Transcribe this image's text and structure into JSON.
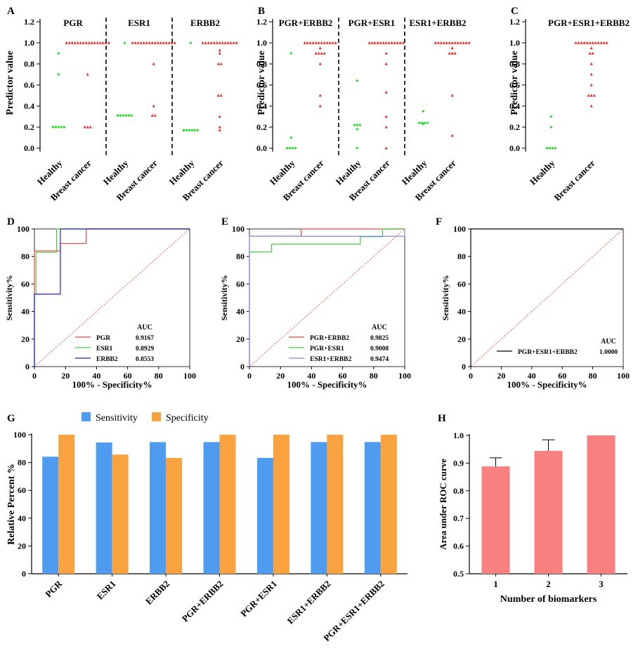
{
  "colors": {
    "healthy": "#22dd22",
    "cancel": "#ee2222",
    "diag": "#ee4444",
    "roc_red": "#ee4444",
    "roc_green": "#44cc44",
    "roc_blue": "#2222bb",
    "roc_purple": "#8888ee",
    "sens": "#4f9bf0",
    "spec": "#f8a240",
    "auc_bar": "#f98080"
  },
  "panels": {
    "A": {
      "letter": "A",
      "ylabel": "Predictor value",
      "yticks": [
        "0.0",
        "0.2",
        "0.4",
        "0.6",
        "0.8",
        "1.0",
        "1.2"
      ],
      "groups": [
        {
          "title": "PGR",
          "cats": [
            "Healthy",
            "Breast cancer"
          ],
          "healthy": [
            0.9,
            0.7,
            0.2,
            0.2,
            0.2,
            0.2,
            0.2
          ],
          "cancer": [
            1,
            1,
            1,
            1,
            1,
            1,
            1,
            1,
            1,
            1,
            1,
            1,
            1,
            1,
            1,
            1,
            0.7,
            0.2,
            0.2,
            0.2
          ]
        },
        {
          "title": "ESR1",
          "cats": [
            "Healthy",
            "Breast cancer"
          ],
          "healthy": [
            1.0,
            0.31,
            0.31,
            0.31,
            0.31,
            0.31,
            0.31
          ],
          "cancer": [
            1,
            1,
            1,
            1,
            1,
            1,
            1,
            1,
            1,
            1,
            1,
            1,
            1,
            1,
            1,
            1,
            0.8,
            0.4,
            0.31,
            0.31
          ]
        },
        {
          "title": "ERBB2",
          "cats": [
            "Healthy",
            "Breast cancer"
          ],
          "healthy": [
            1.0,
            0.17,
            0.17,
            0.17,
            0.17,
            0.17,
            0.17
          ],
          "cancer": [
            1,
            1,
            1,
            1,
            1,
            1,
            1,
            1,
            1,
            1,
            1,
            1,
            1,
            0.93,
            0.9,
            0.8,
            0.8,
            0.5,
            0.5,
            0.3,
            0.2,
            0.17
          ]
        }
      ]
    },
    "B": {
      "letter": "B",
      "ylabel": "Predictor value",
      "yticks": [
        "0.0",
        "0.2",
        "0.4",
        "0.6",
        "0.8",
        "1.0",
        "1.2"
      ],
      "groups": [
        {
          "title": "PGR+ERBB2",
          "cats": [
            "Healthy",
            "Breast cancer"
          ],
          "healthy": [
            0.9,
            0.1,
            0,
            0,
            0,
            0
          ],
          "cancer": [
            1,
            1,
            1,
            1,
            1,
            1,
            1,
            1,
            1,
            1,
            1,
            1,
            0.95,
            0.9,
            0.9,
            0.9,
            0.9,
            0.8,
            0.5,
            0.4
          ]
        },
        {
          "title": "PGR+ESR1",
          "cats": [
            "Healthy",
            "Breast cancer"
          ],
          "healthy": [
            0.64,
            0.22,
            0.22,
            0.22,
            0.18,
            0.0
          ],
          "cancer": [
            1,
            1,
            1,
            1,
            1,
            1,
            1,
            1,
            1,
            1,
            1,
            1,
            1,
            0.9,
            0.8,
            0.53,
            0.3,
            0.2,
            0.0
          ]
        },
        {
          "title": "ESR1+ERBB2",
          "cats": [
            "Healthy",
            "Breast cancer"
          ],
          "healthy": [
            0.35,
            0.24,
            0.24,
            0.24,
            0.24,
            0.23
          ],
          "cancer": [
            1,
            1,
            1,
            1,
            1,
            1,
            1,
            1,
            1,
            1,
            1,
            1,
            1,
            0.95,
            0.9,
            0.9,
            0.9,
            0.5,
            0.12
          ]
        }
      ]
    },
    "C": {
      "letter": "C",
      "ylabel": "Predictor value",
      "yticks": [
        "0.0",
        "0.2",
        "0.4",
        "0.6",
        "0.8",
        "1.0",
        "1.2"
      ],
      "groups": [
        {
          "title": "PGR+ESR1+ERBB2",
          "cats": [
            "Healthy",
            "Breast cancer"
          ],
          "healthy": [
            0.3,
            0.2,
            0,
            0,
            0,
            0
          ],
          "cancer": [
            1,
            1,
            1,
            1,
            1,
            1,
            1,
            1,
            1,
            1,
            1,
            1,
            0.95,
            0.9,
            0.9,
            0.8,
            0.7,
            0.6,
            0.5,
            0.5,
            0.5,
            0.4
          ]
        }
      ]
    },
    "D": {
      "letter": "D",
      "xlabel": "100% - Specificity%",
      "ylabel": "Sensitivity%",
      "ticks": [
        "0",
        "20",
        "40",
        "60",
        "80",
        "100"
      ],
      "auc_header": "AUC",
      "curves": [
        {
          "name": "PGR",
          "auc": "0.9167",
          "color": "roc_red",
          "pts": [
            [
              0,
              0
            ],
            [
              0,
              84
            ],
            [
              16.7,
              84
            ],
            [
              16.7,
              89.5
            ],
            [
              33.3,
              89.5
            ],
            [
              33.3,
              100
            ],
            [
              100,
              100
            ]
          ]
        },
        {
          "name": "ESR1",
          "auc": "0.8929",
          "color": "roc_green",
          "pts": [
            [
              0,
              0
            ],
            [
              0,
              52.6
            ],
            [
              1,
              52.6
            ],
            [
              1,
              83
            ],
            [
              14.3,
              83
            ],
            [
              14.3,
              100
            ],
            [
              100,
              100
            ]
          ]
        },
        {
          "name": "ERBB2",
          "auc": "0.8553",
          "color": "roc_blue",
          "pts": [
            [
              0,
              0
            ],
            [
              0,
              52.6
            ],
            [
              16.7,
              52.6
            ],
            [
              16.7,
              100
            ],
            [
              100,
              100
            ]
          ]
        }
      ]
    },
    "E": {
      "letter": "E",
      "xlabel": "100% - Specificity%",
      "ylabel": "Sensitivity%",
      "ticks": [
        "0",
        "20",
        "40",
        "60",
        "80",
        "100"
      ],
      "auc_header": "AUC",
      "curves": [
        {
          "name": "PGR+ERBB2",
          "auc": "0.9825",
          "color": "roc_red",
          "pts": [
            [
              0,
              0
            ],
            [
              0,
              94.7
            ],
            [
              33.3,
              94.7
            ],
            [
              33.3,
              100
            ],
            [
              100,
              100
            ]
          ]
        },
        {
          "name": "PGR+ESR1",
          "auc": "0.9008",
          "color": "roc_green",
          "pts": [
            [
              0,
              0
            ],
            [
              0,
              83.3
            ],
            [
              14.3,
              83.3
            ],
            [
              14.3,
              88.9
            ],
            [
              71.4,
              88.9
            ],
            [
              71.4,
              94.4
            ],
            [
              85.7,
              94.4
            ],
            [
              85.7,
              100
            ],
            [
              100,
              100
            ]
          ]
        },
        {
          "name": "ESR1+ERBB2",
          "auc": "0.9474",
          "color": "roc_purple",
          "pts": [
            [
              0,
              0
            ],
            [
              0,
              94.7
            ],
            [
              100,
              94.7
            ],
            [
              100,
              100
            ]
          ]
        }
      ]
    },
    "F": {
      "letter": "F",
      "xlabel": "100% - Specificity%",
      "ylabel": "Sensitivity%",
      "ticks": [
        "0",
        "20",
        "40",
        "60",
        "80",
        "100"
      ],
      "auc_header": "AUC",
      "curves": [
        {
          "name": "PGR+ESR1+ERBB2",
          "auc": "1.0000",
          "color": "black",
          "pts": [
            [
              0,
              0
            ],
            [
              0,
              100
            ],
            [
              100,
              100
            ]
          ]
        }
      ]
    },
    "G": {
      "letter": "G",
      "ylabel": "Relative Percent %",
      "legend": [
        "Sensitivity",
        "Specificity"
      ],
      "yticks": [
        "0",
        "20",
        "40",
        "60",
        "80",
        "100"
      ]
    },
    "H": {
      "letter": "H",
      "xlabel": "Number of biomarkers",
      "ylabel": "Area under ROC curve",
      "yticks": [
        "0.5",
        "0.6",
        "0.7",
        "0.8",
        "0.9",
        "1.0"
      ]
    }
  },
  "chart_data": [
    {
      "type": "scatter",
      "panel": "A",
      "ylabel": "Predictor value",
      "ylim": [
        -0.1,
        1.2
      ],
      "groups": [
        "PGR",
        "ESR1",
        "ERBB2"
      ],
      "categories": [
        "Healthy",
        "Breast cancer"
      ]
    },
    {
      "type": "scatter",
      "panel": "B",
      "ylabel": "Predictor value",
      "ylim": [
        -0.1,
        1.2
      ],
      "groups": [
        "PGR+ERBB2",
        "PGR+ESR1",
        "ESR1+ERBB2"
      ],
      "categories": [
        "Healthy",
        "Breast cancer"
      ]
    },
    {
      "type": "scatter",
      "panel": "C",
      "ylabel": "Predictor value",
      "ylim": [
        -0.1,
        1.2
      ],
      "groups": [
        "PGR+ESR1+ERBB2"
      ],
      "categories": [
        "Healthy",
        "Breast cancer"
      ]
    },
    {
      "type": "line",
      "panel": "D",
      "xlabel": "100% - Specificity%",
      "ylabel": "Sensitivity%",
      "xlim": [
        0,
        100
      ],
      "ylim": [
        0,
        100
      ],
      "series": [
        {
          "name": "PGR",
          "auc": 0.9167
        },
        {
          "name": "ESR1",
          "auc": 0.8929
        },
        {
          "name": "ERBB2",
          "auc": 0.8553
        }
      ]
    },
    {
      "type": "line",
      "panel": "E",
      "xlabel": "100% - Specificity%",
      "ylabel": "Sensitivity%",
      "xlim": [
        0,
        100
      ],
      "ylim": [
        0,
        100
      ],
      "series": [
        {
          "name": "PGR+ERBB2",
          "auc": 0.9825
        },
        {
          "name": "PGR+ESR1",
          "auc": 0.9008
        },
        {
          "name": "ESR1+ERBB2",
          "auc": 0.9474
        }
      ]
    },
    {
      "type": "line",
      "panel": "F",
      "xlabel": "100% - Specificity%",
      "ylabel": "Sensitivity%",
      "xlim": [
        0,
        100
      ],
      "ylim": [
        0,
        100
      ],
      "series": [
        {
          "name": "PGR+ESR1+ERBB2",
          "auc": 1.0
        }
      ]
    },
    {
      "type": "bar",
      "panel": "G",
      "ylabel": "Relative Percent %",
      "ylim": [
        0,
        100
      ],
      "categories": [
        "PGR",
        "ESR1",
        "ERBB2",
        "PGR+ERBB2",
        "PGR+ESR1",
        "ESR1+ERBB2",
        "PGR+ESR1+ERBB2"
      ],
      "series": [
        {
          "name": "Sensitivity",
          "values": [
            84.2,
            94.4,
            94.7,
            94.7,
            83.3,
            94.7,
            94.7
          ]
        },
        {
          "name": "Specificity",
          "values": [
            100,
            85.7,
            83.3,
            100,
            100,
            100,
            100
          ]
        }
      ],
      "legend": "top"
    },
    {
      "type": "bar",
      "panel": "H",
      "xlabel": "Number of biomarkers",
      "ylabel": "Area under ROC curve",
      "ylim": [
        0.5,
        1.0
      ],
      "categories": [
        "1",
        "2",
        "3"
      ],
      "values": [
        0.888,
        0.944,
        1.0
      ],
      "errors": [
        0.031,
        0.04,
        0
      ]
    }
  ]
}
